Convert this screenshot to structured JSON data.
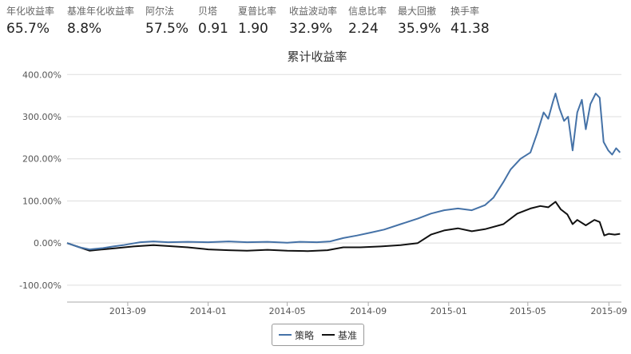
{
  "stats": [
    {
      "label": "年化收益率",
      "value": "65.7%"
    },
    {
      "label": "基准年化收益率",
      "value": "8.8%"
    },
    {
      "label": "阿尔法",
      "value": "57.5%"
    },
    {
      "label": "贝塔",
      "value": "0.91"
    },
    {
      "label": "夏普比率",
      "value": "1.90"
    },
    {
      "label": "收益波动率",
      "value": "32.9%"
    },
    {
      "label": "信息比率",
      "value": "2.24"
    },
    {
      "label": "最大回撤",
      "value": "35.9%"
    },
    {
      "label": "换手率",
      "value": "41.38"
    }
  ],
  "chart_data": {
    "type": "line",
    "title": "累计收益率",
    "xlabel": "",
    "ylabel": "",
    "xlim": [
      "2013-06-01",
      "2015-09-20"
    ],
    "ylim": [
      -140,
      410
    ],
    "yticks": [
      -100,
      0,
      100,
      200,
      300,
      400
    ],
    "ytick_labels": [
      "-100.00%",
      "0.00%",
      "100.00%",
      "200.00%",
      "300.00%",
      "400.00%"
    ],
    "xticks": [
      "2013-09-01",
      "2014-01-01",
      "2014-05-01",
      "2014-09-01",
      "2015-01-01",
      "2015-05-01",
      "2015-09-01"
    ],
    "xtick_labels": [
      "2013-09",
      "2014-01",
      "2014-05",
      "2014-09",
      "2015-01",
      "2015-05",
      "2015-09"
    ],
    "grid": {
      "horizontal": true,
      "vertical": false
    },
    "legend_position": "bottom-center",
    "colors": {
      "策略": "#4572a7",
      "基准": "#111111"
    },
    "series": [
      {
        "name": "策略",
        "points": [
          [
            "2013-06-01",
            0
          ],
          [
            "2013-06-20",
            -10
          ],
          [
            "2013-07-05",
            -15
          ],
          [
            "2013-07-25",
            -12
          ],
          [
            "2013-08-10",
            -8
          ],
          [
            "2013-08-25",
            -5
          ],
          [
            "2013-09-05",
            -2
          ],
          [
            "2013-09-20",
            2
          ],
          [
            "2013-10-10",
            4
          ],
          [
            "2013-11-01",
            2
          ],
          [
            "2013-12-01",
            3
          ],
          [
            "2014-01-01",
            2
          ],
          [
            "2014-02-01",
            4
          ],
          [
            "2014-03-01",
            2
          ],
          [
            "2014-04-01",
            3
          ],
          [
            "2014-05-01",
            1
          ],
          [
            "2014-05-20",
            3
          ],
          [
            "2014-06-15",
            2
          ],
          [
            "2014-07-05",
            4
          ],
          [
            "2014-07-25",
            12
          ],
          [
            "2014-08-15",
            18
          ],
          [
            "2014-09-05",
            25
          ],
          [
            "2014-09-25",
            32
          ],
          [
            "2014-10-20",
            45
          ],
          [
            "2014-11-15",
            58
          ],
          [
            "2014-12-05",
            70
          ],
          [
            "2014-12-25",
            78
          ],
          [
            "2015-01-15",
            82
          ],
          [
            "2015-02-05",
            78
          ],
          [
            "2015-02-25",
            90
          ],
          [
            "2015-03-10",
            108
          ],
          [
            "2015-03-25",
            145
          ],
          [
            "2015-04-05",
            175
          ],
          [
            "2015-04-20",
            200
          ],
          [
            "2015-05-05",
            215
          ],
          [
            "2015-05-15",
            260
          ],
          [
            "2015-05-25",
            310
          ],
          [
            "2015-06-01",
            295
          ],
          [
            "2015-06-08",
            335
          ],
          [
            "2015-06-12",
            355
          ],
          [
            "2015-06-18",
            320
          ],
          [
            "2015-06-25",
            290
          ],
          [
            "2015-07-01",
            300
          ],
          [
            "2015-07-08",
            220
          ],
          [
            "2015-07-15",
            310
          ],
          [
            "2015-07-22",
            340
          ],
          [
            "2015-07-28",
            270
          ],
          [
            "2015-08-04",
            330
          ],
          [
            "2015-08-12",
            355
          ],
          [
            "2015-08-18",
            345
          ],
          [
            "2015-08-24",
            240
          ],
          [
            "2015-08-31",
            220
          ],
          [
            "2015-09-06",
            210
          ],
          [
            "2015-09-12",
            225
          ],
          [
            "2015-09-18",
            215
          ]
        ]
      },
      {
        "name": "基准",
        "points": [
          [
            "2013-06-01",
            0
          ],
          [
            "2013-06-20",
            -10
          ],
          [
            "2013-07-05",
            -18
          ],
          [
            "2013-07-25",
            -15
          ],
          [
            "2013-08-15",
            -12
          ],
          [
            "2013-09-10",
            -8
          ],
          [
            "2013-10-10",
            -5
          ],
          [
            "2013-11-01",
            -7
          ],
          [
            "2013-12-01",
            -10
          ],
          [
            "2014-01-01",
            -15
          ],
          [
            "2014-02-01",
            -17
          ],
          [
            "2014-03-01",
            -18
          ],
          [
            "2014-04-01",
            -16
          ],
          [
            "2014-05-01",
            -18
          ],
          [
            "2014-06-01",
            -19
          ],
          [
            "2014-07-01",
            -17
          ],
          [
            "2014-07-25",
            -10
          ],
          [
            "2014-08-20",
            -10
          ],
          [
            "2014-09-20",
            -8
          ],
          [
            "2014-10-20",
            -5
          ],
          [
            "2014-11-15",
            0
          ],
          [
            "2014-12-05",
            20
          ],
          [
            "2014-12-25",
            30
          ],
          [
            "2015-01-15",
            35
          ],
          [
            "2015-02-05",
            28
          ],
          [
            "2015-02-25",
            33
          ],
          [
            "2015-03-25",
            45
          ],
          [
            "2015-04-15",
            70
          ],
          [
            "2015-05-05",
            82
          ],
          [
            "2015-05-20",
            88
          ],
          [
            "2015-06-01",
            85
          ],
          [
            "2015-06-12",
            98
          ],
          [
            "2015-06-20",
            80
          ],
          [
            "2015-06-30",
            68
          ],
          [
            "2015-07-08",
            45
          ],
          [
            "2015-07-15",
            55
          ],
          [
            "2015-07-28",
            42
          ],
          [
            "2015-08-10",
            55
          ],
          [
            "2015-08-18",
            50
          ],
          [
            "2015-08-25",
            18
          ],
          [
            "2015-09-01",
            22
          ],
          [
            "2015-09-10",
            20
          ],
          [
            "2015-09-18",
            22
          ]
        ]
      }
    ]
  }
}
